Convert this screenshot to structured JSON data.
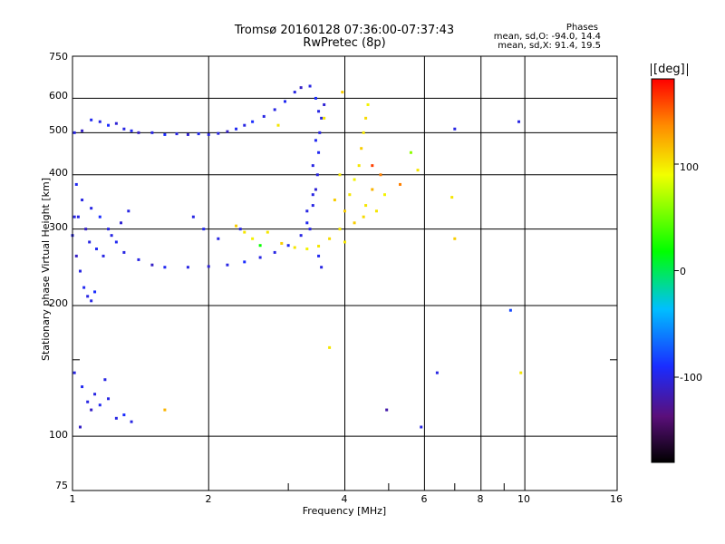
{
  "chart_data": {
    "type": "scatter",
    "title": "Tromsø 20160128 07:36:00-07:37:43",
    "subtitle": "RwPretec (8p)",
    "xlabel": "Frequency [MHz]",
    "ylabel": "Stationary phase Virtual Height [km]",
    "x_scale": "log",
    "y_scale": "log",
    "xlim": [
      1,
      16
    ],
    "ylim": [
      75,
      750
    ],
    "x_ticks": [
      "1",
      "2",
      "4",
      "6",
      "8",
      "10",
      "16"
    ],
    "y_ticks": [
      "75",
      "100",
      "200",
      "300",
      "400",
      "500",
      "600",
      "750"
    ],
    "grid": true,
    "stats": {
      "heading": "Phases",
      "o_mode": "mean, sd,O: -94.0, 14.4",
      "x_mode": "mean, sd,X: 91.4, 19.5"
    },
    "colorbar": {
      "unit": "[deg]",
      "range": [
        -180,
        180
      ],
      "ticks": [
        "100",
        "0",
        "-100"
      ]
    },
    "series": [
      {
        "mode": "O",
        "points": [
          [
            1.01,
            500,
            -100
          ],
          [
            1.05,
            505,
            -110
          ],
          [
            1.1,
            535,
            -95
          ],
          [
            1.15,
            530,
            -100
          ],
          [
            1.2,
            520,
            -90
          ],
          [
            1.25,
            525,
            -105
          ],
          [
            1.3,
            510,
            -100
          ],
          [
            1.35,
            505,
            -95
          ],
          [
            1.4,
            500,
            -110
          ],
          [
            1.5,
            500,
            -100
          ],
          [
            1.6,
            495,
            -90
          ],
          [
            1.7,
            497,
            -100
          ],
          [
            1.8,
            495,
            -105
          ],
          [
            1.9,
            497,
            -95
          ],
          [
            2.0,
            495,
            -100
          ],
          [
            2.1,
            498,
            -100
          ],
          [
            2.2,
            503,
            -110
          ],
          [
            2.3,
            510,
            -95
          ],
          [
            2.4,
            520,
            -100
          ],
          [
            2.5,
            530,
            -90
          ],
          [
            2.65,
            545,
            -100
          ],
          [
            2.8,
            565,
            -100
          ],
          [
            2.95,
            590,
            -95
          ],
          [
            3.1,
            620,
            -100
          ],
          [
            3.2,
            635,
            -110
          ],
          [
            3.35,
            640,
            -100
          ],
          [
            3.45,
            600,
            -90
          ],
          [
            3.5,
            560,
            -100
          ],
          [
            3.52,
            500,
            -100
          ],
          [
            3.5,
            450,
            -95
          ],
          [
            3.48,
            400,
            -100
          ],
          [
            3.45,
            370,
            -105
          ],
          [
            3.4,
            340,
            -100
          ],
          [
            3.3,
            310,
            -95
          ],
          [
            3.2,
            290,
            -100
          ],
          [
            3.0,
            275,
            -95
          ],
          [
            2.8,
            265,
            -100
          ],
          [
            2.6,
            258,
            -100
          ],
          [
            2.4,
            252,
            -90
          ],
          [
            2.2,
            248,
            -100
          ],
          [
            2.0,
            246,
            -105
          ],
          [
            1.8,
            245,
            -100
          ],
          [
            1.6,
            245,
            -95
          ],
          [
            1.5,
            248,
            -110
          ],
          [
            1.4,
            255,
            -100
          ],
          [
            1.3,
            265,
            -100
          ],
          [
            1.25,
            280,
            -95
          ],
          [
            1.2,
            300,
            -100
          ],
          [
            1.15,
            320,
            -90
          ],
          [
            1.1,
            335,
            -100
          ],
          [
            1.05,
            350,
            -100
          ],
          [
            1.02,
            380,
            -95
          ],
          [
            1.01,
            320,
            -100
          ],
          [
            1.0,
            290,
            -100
          ],
          [
            1.02,
            260,
            -110
          ],
          [
            1.04,
            240,
            -100
          ],
          [
            1.06,
            220,
            -95
          ],
          [
            1.08,
            210,
            -100
          ],
          [
            1.1,
            205,
            -100
          ],
          [
            1.12,
            215,
            -90
          ],
          [
            1.03,
            320,
            -100
          ],
          [
            1.07,
            300,
            -110
          ],
          [
            1.09,
            280,
            -100
          ],
          [
            1.13,
            270,
            -95
          ],
          [
            1.17,
            260,
            -100
          ],
          [
            1.22,
            290,
            -100
          ],
          [
            1.28,
            310,
            -105
          ],
          [
            1.33,
            330,
            -100
          ],
          [
            1.01,
            140,
            -100
          ],
          [
            1.05,
            130,
            -95
          ],
          [
            1.08,
            120,
            -100
          ],
          [
            1.1,
            115,
            -110
          ],
          [
            1.12,
            125,
            -100
          ],
          [
            1.15,
            118,
            -95
          ],
          [
            1.2,
            122,
            -100
          ],
          [
            1.25,
            110,
            -100
          ],
          [
            1.3,
            112,
            -90
          ],
          [
            1.35,
            108,
            -100
          ],
          [
            1.04,
            105,
            -110
          ],
          [
            1.18,
            135,
            -100
          ],
          [
            1.85,
            320,
            -100
          ],
          [
            1.95,
            300,
            -95
          ],
          [
            2.1,
            285,
            -100
          ],
          [
            2.35,
            300,
            -100
          ],
          [
            3.3,
            330,
            -100
          ],
          [
            3.4,
            420,
            -100
          ],
          [
            3.45,
            480,
            -95
          ],
          [
            3.55,
            540,
            -100
          ],
          [
            3.6,
            580,
            -105
          ],
          [
            3.4,
            360,
            -100
          ],
          [
            3.35,
            300,
            -100
          ],
          [
            3.5,
            260,
            -95
          ],
          [
            3.55,
            245,
            -100
          ],
          [
            4.95,
            115,
            -120
          ],
          [
            5.9,
            105,
            -100
          ],
          [
            6.4,
            140,
            -100
          ],
          [
            7.0,
            510,
            -100
          ],
          [
            9.7,
            530,
            -100
          ],
          [
            9.3,
            195,
            -80
          ]
        ]
      },
      {
        "mode": "X",
        "points": [
          [
            2.3,
            305,
            110
          ],
          [
            2.4,
            295,
            100
          ],
          [
            2.5,
            285,
            95
          ],
          [
            2.7,
            295,
            100
          ],
          [
            2.9,
            278,
            110
          ],
          [
            3.1,
            272,
            100
          ],
          [
            3.3,
            270,
            95
          ],
          [
            3.5,
            274,
            100
          ],
          [
            3.7,
            285,
            105
          ],
          [
            3.9,
            300,
            100
          ],
          [
            4.0,
            330,
            110
          ],
          [
            4.1,
            360,
            100
          ],
          [
            4.2,
            390,
            95
          ],
          [
            4.3,
            420,
            100
          ],
          [
            4.35,
            460,
            110
          ],
          [
            4.4,
            500,
            100
          ],
          [
            4.45,
            540,
            105
          ],
          [
            4.5,
            580,
            95
          ],
          [
            4.0,
            280,
            100
          ],
          [
            4.2,
            310,
            110
          ],
          [
            4.45,
            340,
            100
          ],
          [
            4.6,
            370,
            120
          ],
          [
            4.8,
            400,
            140
          ],
          [
            4.9,
            360,
            95
          ],
          [
            4.7,
            330,
            100
          ],
          [
            4.4,
            320,
            105
          ],
          [
            3.8,
            350,
            110
          ],
          [
            3.9,
            400,
            100
          ],
          [
            3.95,
            620,
            110
          ],
          [
            3.6,
            540,
            100
          ],
          [
            5.3,
            380,
            140
          ],
          [
            5.6,
            450,
            60
          ],
          [
            5.8,
            410,
            100
          ],
          [
            6.9,
            355,
            100
          ],
          [
            7.0,
            285,
            110
          ],
          [
            2.85,
            520,
            100
          ],
          [
            9.8,
            140,
            100
          ],
          [
            1.6,
            115,
            120
          ],
          [
            3.7,
            160,
            100
          ],
          [
            2.6,
            275,
            20
          ],
          [
            4.6,
            420,
            160
          ]
        ]
      }
    ]
  }
}
